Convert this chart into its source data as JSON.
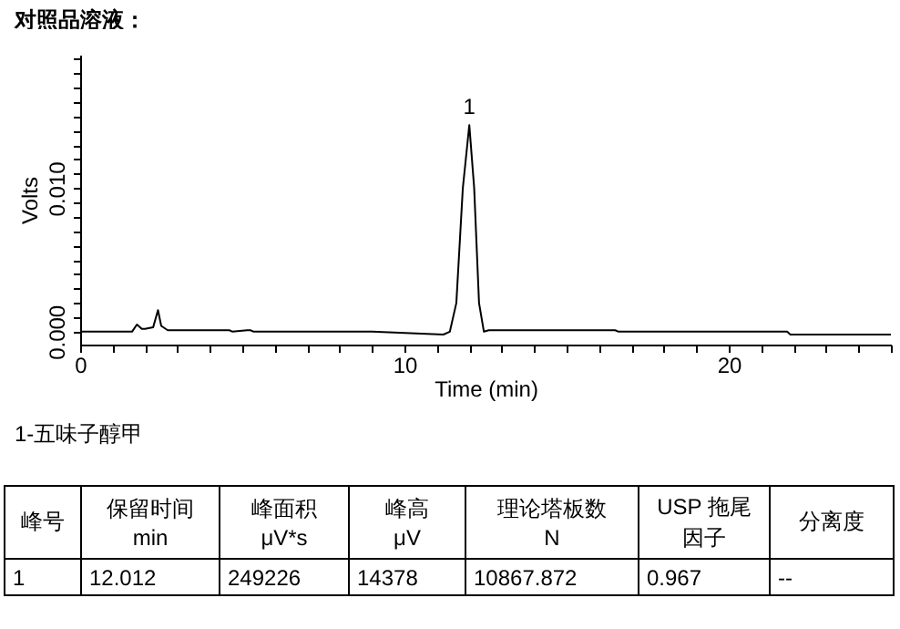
{
  "chart_data": {
    "type": "line",
    "title": "对照品溶液：",
    "xlabel": "Time (min)",
    "ylabel": "Volts",
    "x": [
      0,
      1.6,
      1.75,
      1.9,
      2.0,
      2.25,
      2.4,
      2.5,
      2.7,
      4.6,
      4.7,
      5.15,
      5.25,
      5.35,
      9.0,
      11.2,
      11.4,
      11.6,
      11.8,
      12.0,
      12.15,
      12.3,
      12.45,
      12.6,
      16.5,
      16.6,
      21.8,
      21.9,
      25
    ],
    "series": [
      {
        "color": "#000000",
        "values": [
          0,
          0,
          0.0005,
          0.0002,
          0.0002,
          0.0003,
          0.0015,
          0.0004,
          0.0001,
          0.0001,
          0,
          0.0001,
          0.0001,
          0,
          0,
          -0.0002,
          0,
          0.002,
          0.01,
          0.0144,
          0.01,
          0.002,
          0,
          0.0001,
          0.0001,
          0,
          0,
          -0.0002,
          -0.0002
        ]
      }
    ],
    "xlim": [
      0,
      25
    ],
    "ylim": [
      -0.0009,
      0.0193
    ],
    "xticks": [
      0,
      {
        "value": 1,
        "label": null
      },
      {
        "value": 2,
        "label": null
      },
      {
        "value": 3,
        "label": null
      },
      {
        "value": 4,
        "label": null
      },
      {
        "value": 5,
        "label": null
      },
      {
        "value": 6,
        "label": null
      },
      {
        "value": 7,
        "label": null
      },
      {
        "value": 8,
        "label": null
      },
      {
        "value": 9,
        "label": null
      },
      10,
      {
        "value": 11,
        "label": null
      },
      {
        "value": 12,
        "label": null
      },
      {
        "value": 13,
        "label": null
      },
      {
        "value": 14,
        "label": null
      },
      {
        "value": 15,
        "label": null
      },
      {
        "value": 16,
        "label": null
      },
      {
        "value": 17,
        "label": null
      },
      {
        "value": 18,
        "label": null
      },
      {
        "value": 19,
        "label": null
      },
      20,
      {
        "value": 21,
        "label": null
      },
      {
        "value": 22,
        "label": null
      },
      {
        "value": 23,
        "label": null
      },
      {
        "value": 24,
        "label": null
      },
      {
        "value": 25,
        "label": null
      }
    ],
    "yticks": [
      {
        "value": 0,
        "label": "0.000"
      },
      {
        "value": 0.001,
        "label": null
      },
      {
        "value": 0.002,
        "label": null
      },
      {
        "value": 0.003,
        "label": null
      },
      {
        "value": 0.004,
        "label": null
      },
      {
        "value": 0.005,
        "label": null
      },
      {
        "value": 0.006,
        "label": null
      },
      {
        "value": 0.007,
        "label": null
      },
      {
        "value": 0.008,
        "label": null
      },
      {
        "value": 0.009,
        "label": null
      },
      {
        "value": 0.01,
        "label": "0.010"
      },
      {
        "value": 0.011,
        "label": null
      },
      {
        "value": 0.012,
        "label": null
      },
      {
        "value": 0.013,
        "label": null
      },
      {
        "value": 0.014,
        "label": null
      },
      {
        "value": 0.015,
        "label": null
      },
      {
        "value": 0.016,
        "label": null
      },
      {
        "value": 0.017,
        "label": null
      },
      {
        "value": 0.018,
        "label": null
      },
      {
        "value": 0.019,
        "label": null
      }
    ],
    "grid": false,
    "marker": "none",
    "line_style": "solid",
    "annotations": [
      {
        "text": "1",
        "x": 12.0,
        "y": 0.0144
      },
      "1-五味子醇甲",
      "峰号",
      "保留时间\nmin",
      "峰面积\nμV*s",
      "峰高\nμV",
      "理论塔板数\nN",
      "USP 拖尾因子",
      "分离度",
      "1",
      "12.012",
      "249226",
      "14378",
      "10867.872",
      "0.967",
      "--"
    ]
  }
}
